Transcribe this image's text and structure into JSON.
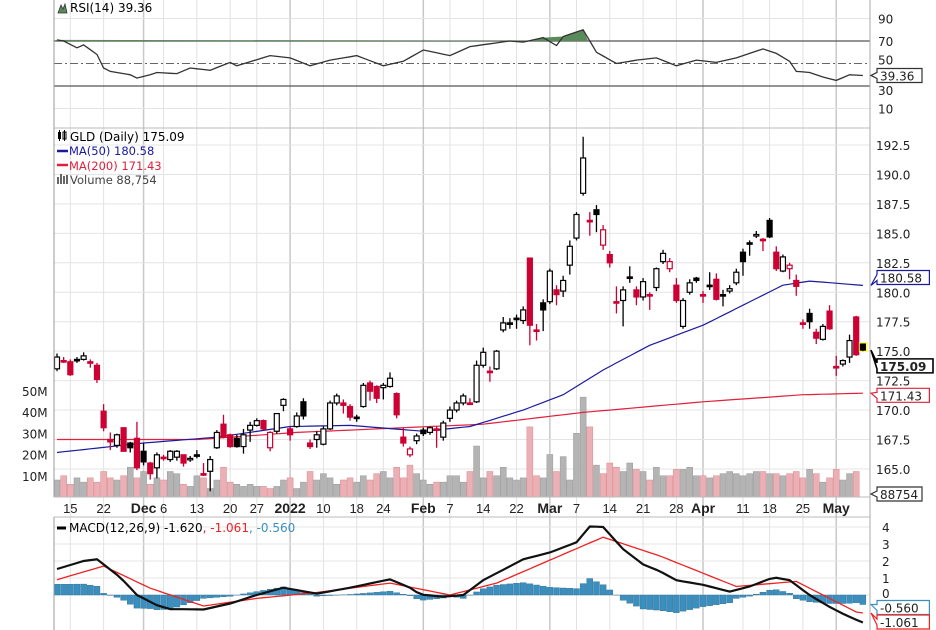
{
  "chart_data": {
    "type": "candlestick",
    "symbol_legend": "GLD (Daily) 175.09",
    "ma50_legend": "MA(50) 180.58",
    "ma200_legend": "MA(200) 171.43",
    "volume_legend": "Volume 88,754",
    "rsi_legend": "RSI(14) 39.36",
    "macd_legend": "MACD(12,26,9) -1.620",
    "macd_signal_legend": ", -1.061",
    "macd_hist_legend": ", -0.560",
    "tags": {
      "rsi": "39.36",
      "ma50": "180.58",
      "close": "175.09",
      "ma200": "171.43",
      "volume": "88754",
      "macd_hist": "-0.560",
      "macd_signal": "-1.061"
    },
    "colors": {
      "up": "#000000",
      "down": "#cc0033",
      "ma50": "#1a1a9e",
      "ma200": "#e0203c",
      "rsi": "#333333",
      "rsi_fill": "#5a8a5a",
      "macd": "#111111",
      "signal": "#ee2222",
      "hist": "#3a8fbf",
      "vol_up": "#b4b4b4",
      "vol_down": "#eab0b6"
    },
    "price_axis": {
      "min": 163.5,
      "max": 193.8,
      "ticks": [
        "192.5",
        "190.0",
        "187.5",
        "185.0",
        "182.5",
        "180.0",
        "177.5",
        "175.0",
        "172.5",
        "170.0",
        "167.5",
        "165.0"
      ]
    },
    "volume_axis": {
      "ticks": [
        "50M",
        "40M",
        "30M",
        "20M",
        "10M"
      ],
      "unit": "millions"
    },
    "rsi_axis": {
      "ticks": [
        "90",
        "70",
        "50",
        "30",
        "10"
      ],
      "overbought": 70,
      "oversold": 30
    },
    "macd_axis": {
      "ticks": [
        "4",
        "3",
        "2",
        "1",
        "0"
      ]
    },
    "x_ticks": [
      {
        "label": "15",
        "at": 2
      },
      {
        "label": "22",
        "at": 7
      },
      {
        "label": "Dec",
        "at": 13,
        "bold": true
      },
      {
        "label": "6",
        "at": 16
      },
      {
        "label": "13",
        "at": 21
      },
      {
        "label": "20",
        "at": 26
      },
      {
        "label": "27",
        "at": 30
      },
      {
        "label": "2022",
        "at": 35,
        "bold": true
      },
      {
        "label": "10",
        "at": 40
      },
      {
        "label": "18",
        "at": 45
      },
      {
        "label": "24",
        "at": 49
      },
      {
        "label": "Feb",
        "at": 55,
        "bold": true
      },
      {
        "label": "7",
        "at": 59
      },
      {
        "label": "14",
        "at": 64
      },
      {
        "label": "22",
        "at": 69
      },
      {
        "label": "Mar",
        "at": 74,
        "bold": true
      },
      {
        "label": "7",
        "at": 78
      },
      {
        "label": "14",
        "at": 83
      },
      {
        "label": "21",
        "at": 88
      },
      {
        "label": "28",
        "at": 93
      },
      {
        "label": "Apr",
        "at": 97,
        "bold": true
      },
      {
        "label": "11",
        "at": 103
      },
      {
        "label": "18",
        "at": 107
      },
      {
        "label": "25",
        "at": 112
      },
      {
        "label": "May",
        "at": 117,
        "bold": true
      }
    ],
    "ohlc": [
      [
        173.5,
        174.8,
        173.3,
        174.5
      ],
      [
        174.2,
        174.5,
        174.0,
        174.2
      ],
      [
        174.1,
        174.3,
        172.9,
        173.0
      ],
      [
        174.3,
        174.5,
        174.0,
        174.2
      ],
      [
        174.3,
        174.9,
        174.2,
        174.6
      ],
      [
        174.1,
        174.3,
        173.6,
        174.0
      ],
      [
        173.8,
        174.0,
        172.3,
        172.6
      ],
      [
        169.9,
        170.5,
        168.2,
        168.5
      ],
      [
        167.5,
        168.1,
        166.6,
        167.3
      ],
      [
        167.0,
        168.0,
        166.8,
        167.9
      ],
      [
        168.5,
        168.5,
        166.5,
        166.5
      ],
      [
        167.2,
        167.3,
        166.4,
        166.8
      ],
      [
        167.6,
        169.0,
        164.9,
        165.1
      ],
      [
        166.5,
        167.2,
        165.3,
        165.6
      ],
      [
        165.5,
        165.6,
        164.1,
        164.6
      ],
      [
        165.1,
        166.4,
        164.2,
        166.2
      ],
      [
        166.0,
        166.2,
        165.7,
        165.9
      ],
      [
        165.8,
        166.6,
        165.6,
        166.5
      ],
      [
        166.0,
        166.6,
        165.7,
        166.5
      ],
      [
        166.2,
        166.2,
        165.2,
        165.5
      ],
      [
        165.8,
        166.1,
        165.6,
        165.9
      ],
      [
        166.2,
        166.6,
        165.9,
        166.2
      ],
      [
        164.6,
        165.5,
        164.4,
        164.6
      ],
      [
        164.8,
        166.1,
        163.1,
        165.8
      ],
      [
        166.8,
        168.3,
        166.7,
        168.1
      ],
      [
        168.8,
        169.6,
        167.6,
        167.7
      ],
      [
        167.9,
        168.0,
        166.8,
        166.9
      ],
      [
        167.6,
        167.9,
        166.8,
        166.9
      ],
      [
        166.9,
        168.4,
        166.3,
        167.9
      ],
      [
        168.3,
        169.0,
        167.3,
        168.7
      ],
      [
        168.7,
        169.3,
        168.6,
        169.1
      ],
      [
        169.1,
        169.2,
        168.3,
        168.4
      ],
      [
        166.8,
        168.2,
        166.5,
        168.1
      ],
      [
        168.2,
        169.7,
        168.0,
        169.7
      ],
      [
        170.4,
        171.0,
        169.9,
        170.9
      ],
      [
        168.4,
        168.6,
        167.4,
        167.9
      ],
      [
        168.6,
        169.8,
        168.5,
        169.5
      ],
      [
        170.7,
        171.0,
        169.2,
        169.5
      ],
      [
        167.2,
        167.5,
        166.7,
        166.9
      ],
      [
        167.5,
        168.2,
        166.8,
        167.9
      ],
      [
        167.1,
        168.6,
        167.0,
        168.4
      ],
      [
        168.4,
        170.8,
        168.3,
        170.6
      ],
      [
        170.6,
        171.4,
        170.4,
        171.2
      ],
      [
        170.6,
        170.9,
        169.7,
        170.4
      ],
      [
        170.3,
        170.5,
        169.1,
        169.4
      ],
      [
        169.4,
        169.6,
        169.0,
        169.4
      ],
      [
        170.3,
        172.3,
        170.2,
        172.1
      ],
      [
        172.3,
        172.5,
        170.8,
        171.6
      ],
      [
        172.0,
        172.1,
        170.6,
        171.0
      ],
      [
        171.9,
        172.3,
        170.9,
        172.1
      ],
      [
        172.0,
        173.2,
        171.9,
        172.7
      ],
      [
        171.4,
        171.5,
        169.3,
        169.6
      ],
      [
        167.7,
        168.5,
        166.9,
        167.2
      ],
      [
        166.2,
        166.9,
        166.0,
        166.7
      ],
      [
        167.4,
        168.0,
        167.1,
        167.8
      ],
      [
        168.3,
        168.5,
        167.8,
        168.0
      ],
      [
        168.1,
        168.6,
        167.9,
        168.5
      ],
      [
        168.4,
        168.6,
        166.8,
        168.4
      ],
      [
        167.7,
        169.1,
        167.4,
        168.9
      ],
      [
        169.3,
        170.3,
        169.0,
        170.0
      ],
      [
        170.0,
        170.8,
        169.8,
        170.6
      ],
      [
        170.6,
        171.4,
        170.4,
        171.2
      ],
      [
        170.6,
        171.0,
        170.5,
        170.6
      ],
      [
        170.7,
        174.2,
        170.6,
        173.8
      ],
      [
        173.8,
        175.3,
        173.6,
        174.9
      ],
      [
        173.3,
        173.7,
        172.4,
        173.3
      ],
      [
        173.5,
        175.1,
        173.4,
        175.0
      ],
      [
        176.8,
        177.9,
        176.6,
        177.4
      ],
      [
        177.4,
        177.8,
        176.9,
        177.4
      ],
      [
        177.8,
        178.1,
        176.9,
        177.7
      ],
      [
        177.6,
        178.8,
        177.3,
        178.5
      ],
      [
        182.9,
        182.9,
        175.5,
        177.2
      ],
      [
        176.8,
        177.3,
        175.9,
        176.8
      ],
      [
        179.1,
        179.4,
        176.7,
        178.5
      ],
      [
        179.2,
        182.0,
        179.0,
        181.8
      ],
      [
        180.2,
        180.6,
        178.9,
        179.8
      ],
      [
        180.1,
        181.4,
        179.6,
        181.0
      ],
      [
        182.3,
        184.4,
        181.5,
        183.9
      ],
      [
        184.6,
        186.8,
        184.4,
        186.6
      ],
      [
        188.4,
        193.2,
        188.2,
        191.4
      ],
      [
        186.1,
        186.8,
        184.8,
        186.1
      ],
      [
        187.0,
        187.4,
        185.1,
        186.6
      ],
      [
        184.0,
        185.7,
        183.6,
        185.3
      ],
      [
        183.2,
        183.5,
        182.1,
        182.5
      ],
      [
        179.2,
        180.5,
        178.2,
        179.2
      ],
      [
        179.3,
        180.5,
        177.1,
        180.2
      ],
      [
        181.3,
        182.2,
        180.8,
        181.2
      ],
      [
        180.2,
        180.5,
        178.9,
        179.6
      ],
      [
        179.6,
        181.2,
        179.3,
        180.9
      ],
      [
        179.8,
        180.0,
        178.5,
        179.7
      ],
      [
        180.4,
        182.1,
        180.1,
        182.0
      ],
      [
        182.6,
        183.6,
        182.4,
        183.3
      ],
      [
        182.0,
        182.9,
        181.7,
        182.6
      ],
      [
        180.6,
        181.2,
        179.1,
        179.3
      ],
      [
        177.1,
        179.5,
        176.9,
        179.3
      ],
      [
        180.0,
        181.1,
        179.8,
        180.8
      ],
      [
        181.2,
        181.3,
        180.8,
        181.0
      ],
      [
        179.8,
        180.1,
        179.1,
        179.8
      ],
      [
        180.6,
        181.7,
        180.2,
        180.5
      ],
      [
        181.1,
        181.6,
        179.3,
        179.4
      ],
      [
        179.8,
        180.2,
        178.8,
        179.8
      ],
      [
        180.1,
        180.6,
        179.9,
        180.3
      ],
      [
        180.8,
        182.0,
        180.6,
        181.7
      ],
      [
        183.4,
        183.7,
        181.4,
        182.6
      ],
      [
        184.2,
        184.4,
        183.1,
        184.1
      ],
      [
        184.8,
        185.2,
        184.6,
        184.9
      ],
      [
        184.5,
        184.6,
        183.5,
        184.4
      ],
      [
        186.1,
        186.3,
        184.6,
        184.7
      ],
      [
        183.4,
        183.9,
        181.8,
        182.0
      ],
      [
        181.8,
        183.2,
        181.7,
        183.0
      ],
      [
        182.0,
        182.5,
        181.1,
        182.3
      ],
      [
        181.0,
        181.5,
        179.7,
        180.5
      ],
      [
        177.4,
        177.7,
        176.9,
        177.4
      ],
      [
        178.2,
        178.6,
        176.9,
        177.5
      ],
      [
        176.6,
        176.9,
        175.6,
        176.1
      ],
      [
        176.0,
        177.3,
        175.9,
        177.1
      ],
      [
        178.4,
        178.9,
        176.8,
        176.9
      ],
      [
        173.7,
        174.6,
        172.9,
        173.7
      ],
      [
        173.9,
        174.3,
        173.7,
        174.2
      ],
      [
        174.5,
        176.4,
        174.0,
        175.9
      ],
      [
        177.9,
        178.0,
        174.6,
        174.7
      ],
      [
        175.6,
        175.6,
        175.0,
        175.09
      ]
    ],
    "volume": [
      8,
      10,
      6,
      9,
      7,
      9,
      7,
      12,
      9,
      8,
      10,
      14,
      9,
      12,
      6,
      9,
      8,
      12,
      11,
      6,
      5,
      10,
      9,
      4,
      8,
      14,
      7,
      6,
      5,
      6,
      5,
      5,
      4,
      5,
      8,
      9,
      4,
      7,
      12,
      8,
      11,
      9,
      6,
      8,
      9,
      7,
      10,
      8,
      11,
      12,
      9,
      14,
      9,
      15,
      11,
      8,
      6,
      7,
      7,
      10,
      10,
      7,
      12,
      24,
      9,
      12,
      10,
      14,
      9,
      8,
      9,
      33,
      10,
      9,
      20,
      12,
      19,
      8,
      30,
      47,
      33,
      15,
      11,
      16,
      14,
      12,
      16,
      13,
      12,
      8,
      14,
      10,
      10,
      13,
      13,
      14,
      10,
      10,
      9,
      10,
      11,
      12,
      11,
      10,
      11,
      12,
      12,
      11,
      11,
      10,
      11,
      12,
      9,
      13,
      11,
      7,
      9,
      13,
      8,
      11,
      12,
      0.09
    ],
    "ma50": [
      [
        0,
        166.4
      ],
      [
        13,
        167.2
      ],
      [
        24,
        167.7
      ],
      [
        35,
        168.6
      ],
      [
        44,
        168.7
      ],
      [
        55,
        168.2
      ],
      [
        62,
        168.6
      ],
      [
        70,
        170.0
      ],
      [
        76,
        171.3
      ],
      [
        82,
        173.4
      ],
      [
        89,
        175.5
      ],
      [
        97,
        177.2
      ],
      [
        103,
        178.9
      ],
      [
        109,
        180.6
      ],
      [
        113,
        180.95
      ],
      [
        121,
        180.58
      ]
    ],
    "ma200": [
      [
        0,
        167.5
      ],
      [
        21,
        167.5
      ],
      [
        36,
        168.1
      ],
      [
        52,
        168.5
      ],
      [
        64,
        168.8
      ],
      [
        70,
        169.2
      ],
      [
        79,
        169.8
      ],
      [
        97,
        170.7
      ],
      [
        112,
        171.3
      ],
      [
        121,
        171.43
      ]
    ],
    "rsi": [
      [
        0,
        71
      ],
      [
        1,
        70
      ],
      [
        3,
        64
      ],
      [
        4,
        66.5
      ],
      [
        6,
        58
      ],
      [
        7,
        46
      ],
      [
        8,
        43
      ],
      [
        11,
        40
      ],
      [
        12,
        37
      ],
      [
        14,
        40
      ],
      [
        15,
        42
      ],
      [
        18,
        41
      ],
      [
        20,
        46
      ],
      [
        23,
        44
      ],
      [
        26,
        51
      ],
      [
        27,
        48
      ],
      [
        32,
        57
      ],
      [
        35,
        55
      ],
      [
        38,
        48
      ],
      [
        41,
        53
      ],
      [
        45,
        57
      ],
      [
        49,
        48
      ],
      [
        52,
        52
      ],
      [
        55,
        62
      ],
      [
        59,
        57
      ],
      [
        62,
        65
      ],
      [
        68,
        70
      ],
      [
        70,
        69
      ],
      [
        73,
        73
      ],
      [
        75,
        66
      ],
      [
        76,
        74
      ],
      [
        79,
        80
      ],
      [
        81,
        60
      ],
      [
        84,
        50
      ],
      [
        87,
        53
      ],
      [
        90,
        55
      ],
      [
        93,
        48
      ],
      [
        96,
        53
      ],
      [
        99,
        51
      ],
      [
        102,
        55
      ],
      [
        106,
        63
      ],
      [
        108,
        59
      ],
      [
        110,
        52
      ],
      [
        111,
        43
      ],
      [
        113,
        42
      ],
      [
        115,
        38
      ],
      [
        117,
        35
      ],
      [
        119,
        40
      ],
      [
        121,
        39.36
      ]
    ],
    "macd": [
      [
        0,
        1.53
      ],
      [
        4,
        2.0
      ],
      [
        6,
        2.1
      ],
      [
        9.5,
        1.04
      ],
      [
        12,
        0
      ],
      [
        15,
        -0.6
      ],
      [
        17,
        -0.83
      ],
      [
        22,
        -0.85
      ],
      [
        26,
        -0.5
      ],
      [
        30,
        0
      ],
      [
        34,
        0.43
      ],
      [
        39,
        0.08
      ],
      [
        44,
        0.43
      ],
      [
        50,
        0.92
      ],
      [
        53,
        0.43
      ],
      [
        54.5,
        0.03
      ],
      [
        58,
        -0.1
      ],
      [
        61,
        0
      ],
      [
        64,
        0.87
      ],
      [
        70,
        2.1
      ],
      [
        74,
        2.5
      ],
      [
        78,
        3.1
      ],
      [
        80,
        4.03
      ],
      [
        82,
        4.0
      ],
      [
        85,
        2.7
      ],
      [
        88,
        1.8
      ],
      [
        90.5,
        1.4
      ],
      [
        93,
        0.87
      ],
      [
        97,
        0.6
      ],
      [
        101,
        0.2
      ],
      [
        104,
        0.5
      ],
      [
        107.6,
        1.04
      ],
      [
        110,
        0.87
      ],
      [
        113,
        0
      ],
      [
        116,
        -0.7
      ],
      [
        118.5,
        -1.2
      ],
      [
        121,
        -1.62
      ]
    ],
    "macd_signal": [
      [
        0,
        0.9
      ],
      [
        7,
        1.7
      ],
      [
        14,
        0.4
      ],
      [
        22,
        -0.65
      ],
      [
        30,
        -0.2
      ],
      [
        39,
        0.15
      ],
      [
        50,
        0.7
      ],
      [
        59,
        0.0
      ],
      [
        66,
        0.7
      ],
      [
        82,
        3.4
      ],
      [
        90.5,
        2.3
      ],
      [
        102,
        0.5
      ],
      [
        111,
        0.8
      ],
      [
        120,
        -1.0
      ],
      [
        121,
        -1.061
      ]
    ]
  }
}
